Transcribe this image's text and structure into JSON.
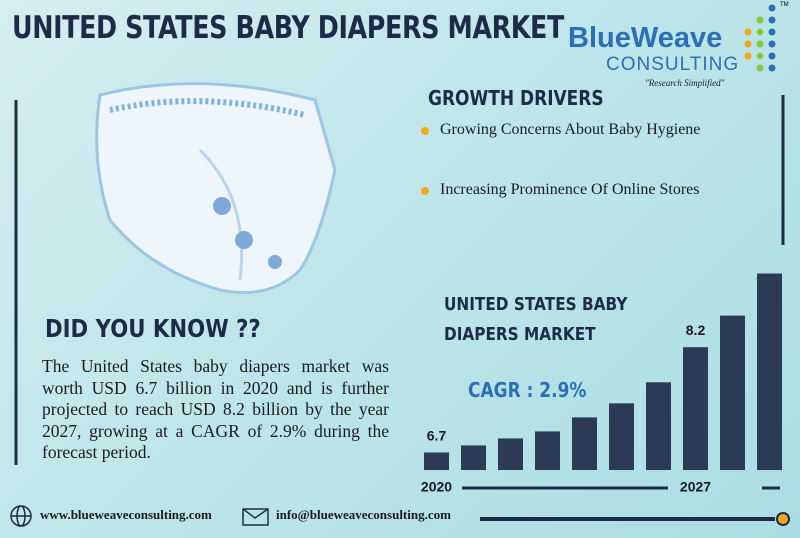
{
  "title": "UNITED STATES BABY DIAPERS MARKET",
  "logo": {
    "name": "BlueWeave",
    "sub": "CONSULTING",
    "tagline": "\"Research Simplified\"",
    "tm": "TM"
  },
  "growth_drivers": {
    "heading": "GROWTH DRIVERS",
    "items": [
      "Growing Concerns About Baby Hygiene",
      "Increasing Prominence Of Online Stores"
    ]
  },
  "did_you_know": {
    "heading": "DID YOU KNOW ??",
    "text": "The United States baby diapers market was worth USD 6.7 billion in 2020 and is further projected to reach USD 8.2 billion by the year 2027, growing at a CAGR of 2.9% during the forecast period."
  },
  "footer": {
    "website": "www.blueweaveconsulting.com",
    "email": "info@blueweaveconsulting.com"
  },
  "chart_data": {
    "type": "bar",
    "title": "UNITED STATES BABY DIAPERS MARKET",
    "annotation": "CAGR : 2.9%",
    "categories": [
      "2020",
      null,
      null,
      null,
      null,
      null,
      null,
      "2027",
      null,
      null
    ],
    "values": [
      6.7,
      6.8,
      6.9,
      7.0,
      7.2,
      7.4,
      7.7,
      8.2,
      8.65,
      9.25
    ],
    "labeled": [
      0,
      7
    ],
    "color": "#2b3a55",
    "ylim": [
      6.45,
      9.3
    ]
  }
}
